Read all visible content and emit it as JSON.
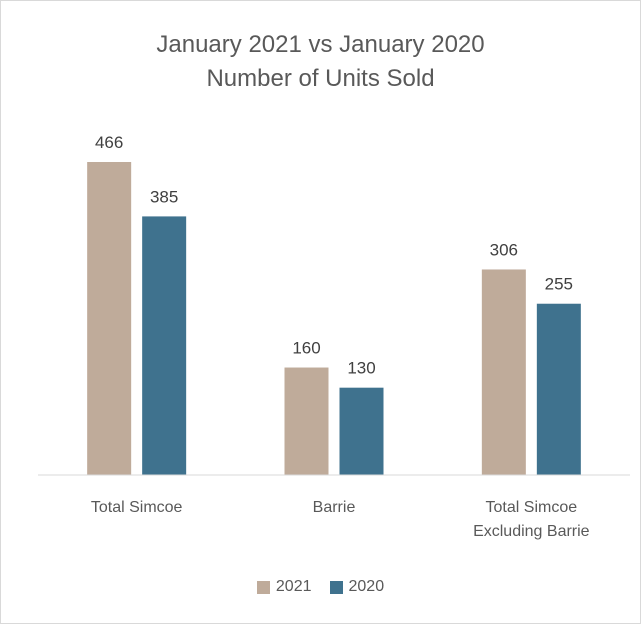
{
  "chart_data": {
    "type": "bar",
    "title_lines": [
      "January 2021 vs January 2020",
      "Number of Units Sold"
    ],
    "categories": [
      [
        "Total Simcoe"
      ],
      [
        "Barrie"
      ],
      [
        "Total Simcoe",
        "Excluding Barrie"
      ]
    ],
    "series": [
      {
        "name": "2021",
        "values": [
          466,
          160,
          306
        ],
        "color": "#bfab9a"
      },
      {
        "name": "2020",
        "values": [
          385,
          130,
          255
        ],
        "color": "#3f728e"
      }
    ],
    "ylim": [
      0,
      466
    ],
    "grid": false,
    "legend_position": "bottom",
    "data_labels": true
  }
}
